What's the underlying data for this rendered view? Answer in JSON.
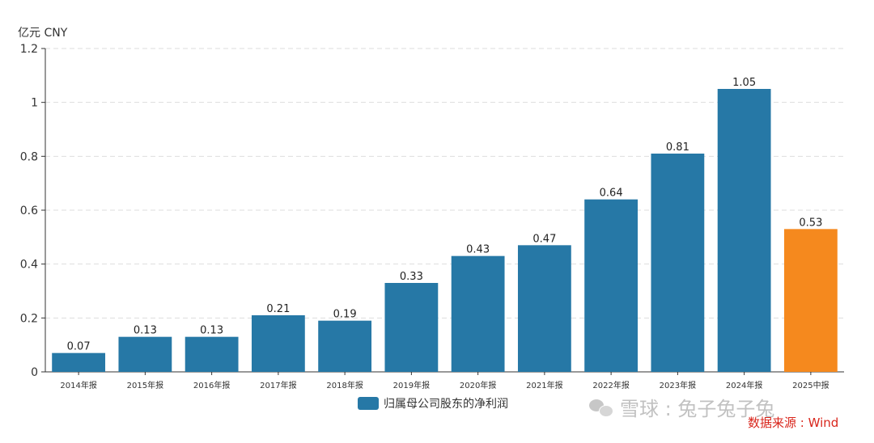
{
  "unit_label": "亿元  CNY",
  "legend_label": "归属母公司股东的净利润",
  "watermark_text": "雪球 : 兔子兔子兔",
  "source_text": "数据来源 : Wind",
  "colors": {
    "bar": "#2678a6",
    "highlight": "#f5891e",
    "axis": "#333333",
    "grid": "#dddddd",
    "source": "#d9261c"
  },
  "chart_data": {
    "type": "bar",
    "categories": [
      "2014年报",
      "2015年报",
      "2016年报",
      "2017年报",
      "2018年报",
      "2019年报",
      "2020年报",
      "2021年报",
      "2022年报",
      "2023年报",
      "2024年报",
      "2025中报"
    ],
    "series": [
      {
        "name": "归属母公司股东的净利润",
        "values": [
          0.07,
          0.13,
          0.13,
          0.21,
          0.19,
          0.33,
          0.43,
          0.47,
          0.64,
          0.81,
          1.05,
          0.53
        ],
        "labels": [
          "0.07",
          "0.13",
          "0.13",
          "0.21",
          "0.19",
          "0.33",
          "0.43",
          "0.47",
          "0.64",
          "0.81",
          "1.05",
          "0.53"
        ]
      }
    ],
    "highlight_index": 11,
    "ylim": [
      0,
      1.2
    ],
    "yticks": [
      0,
      0.2,
      0.4,
      0.6,
      0.8,
      1,
      1.2
    ],
    "ytick_labels": [
      "0",
      "0.2",
      "0.4",
      "0.6",
      "0.8",
      "1",
      "1.2"
    ],
    "ylabel": "亿元  CNY",
    "xlabel": "",
    "grid": true,
    "legend_position": "bottom-center"
  }
}
